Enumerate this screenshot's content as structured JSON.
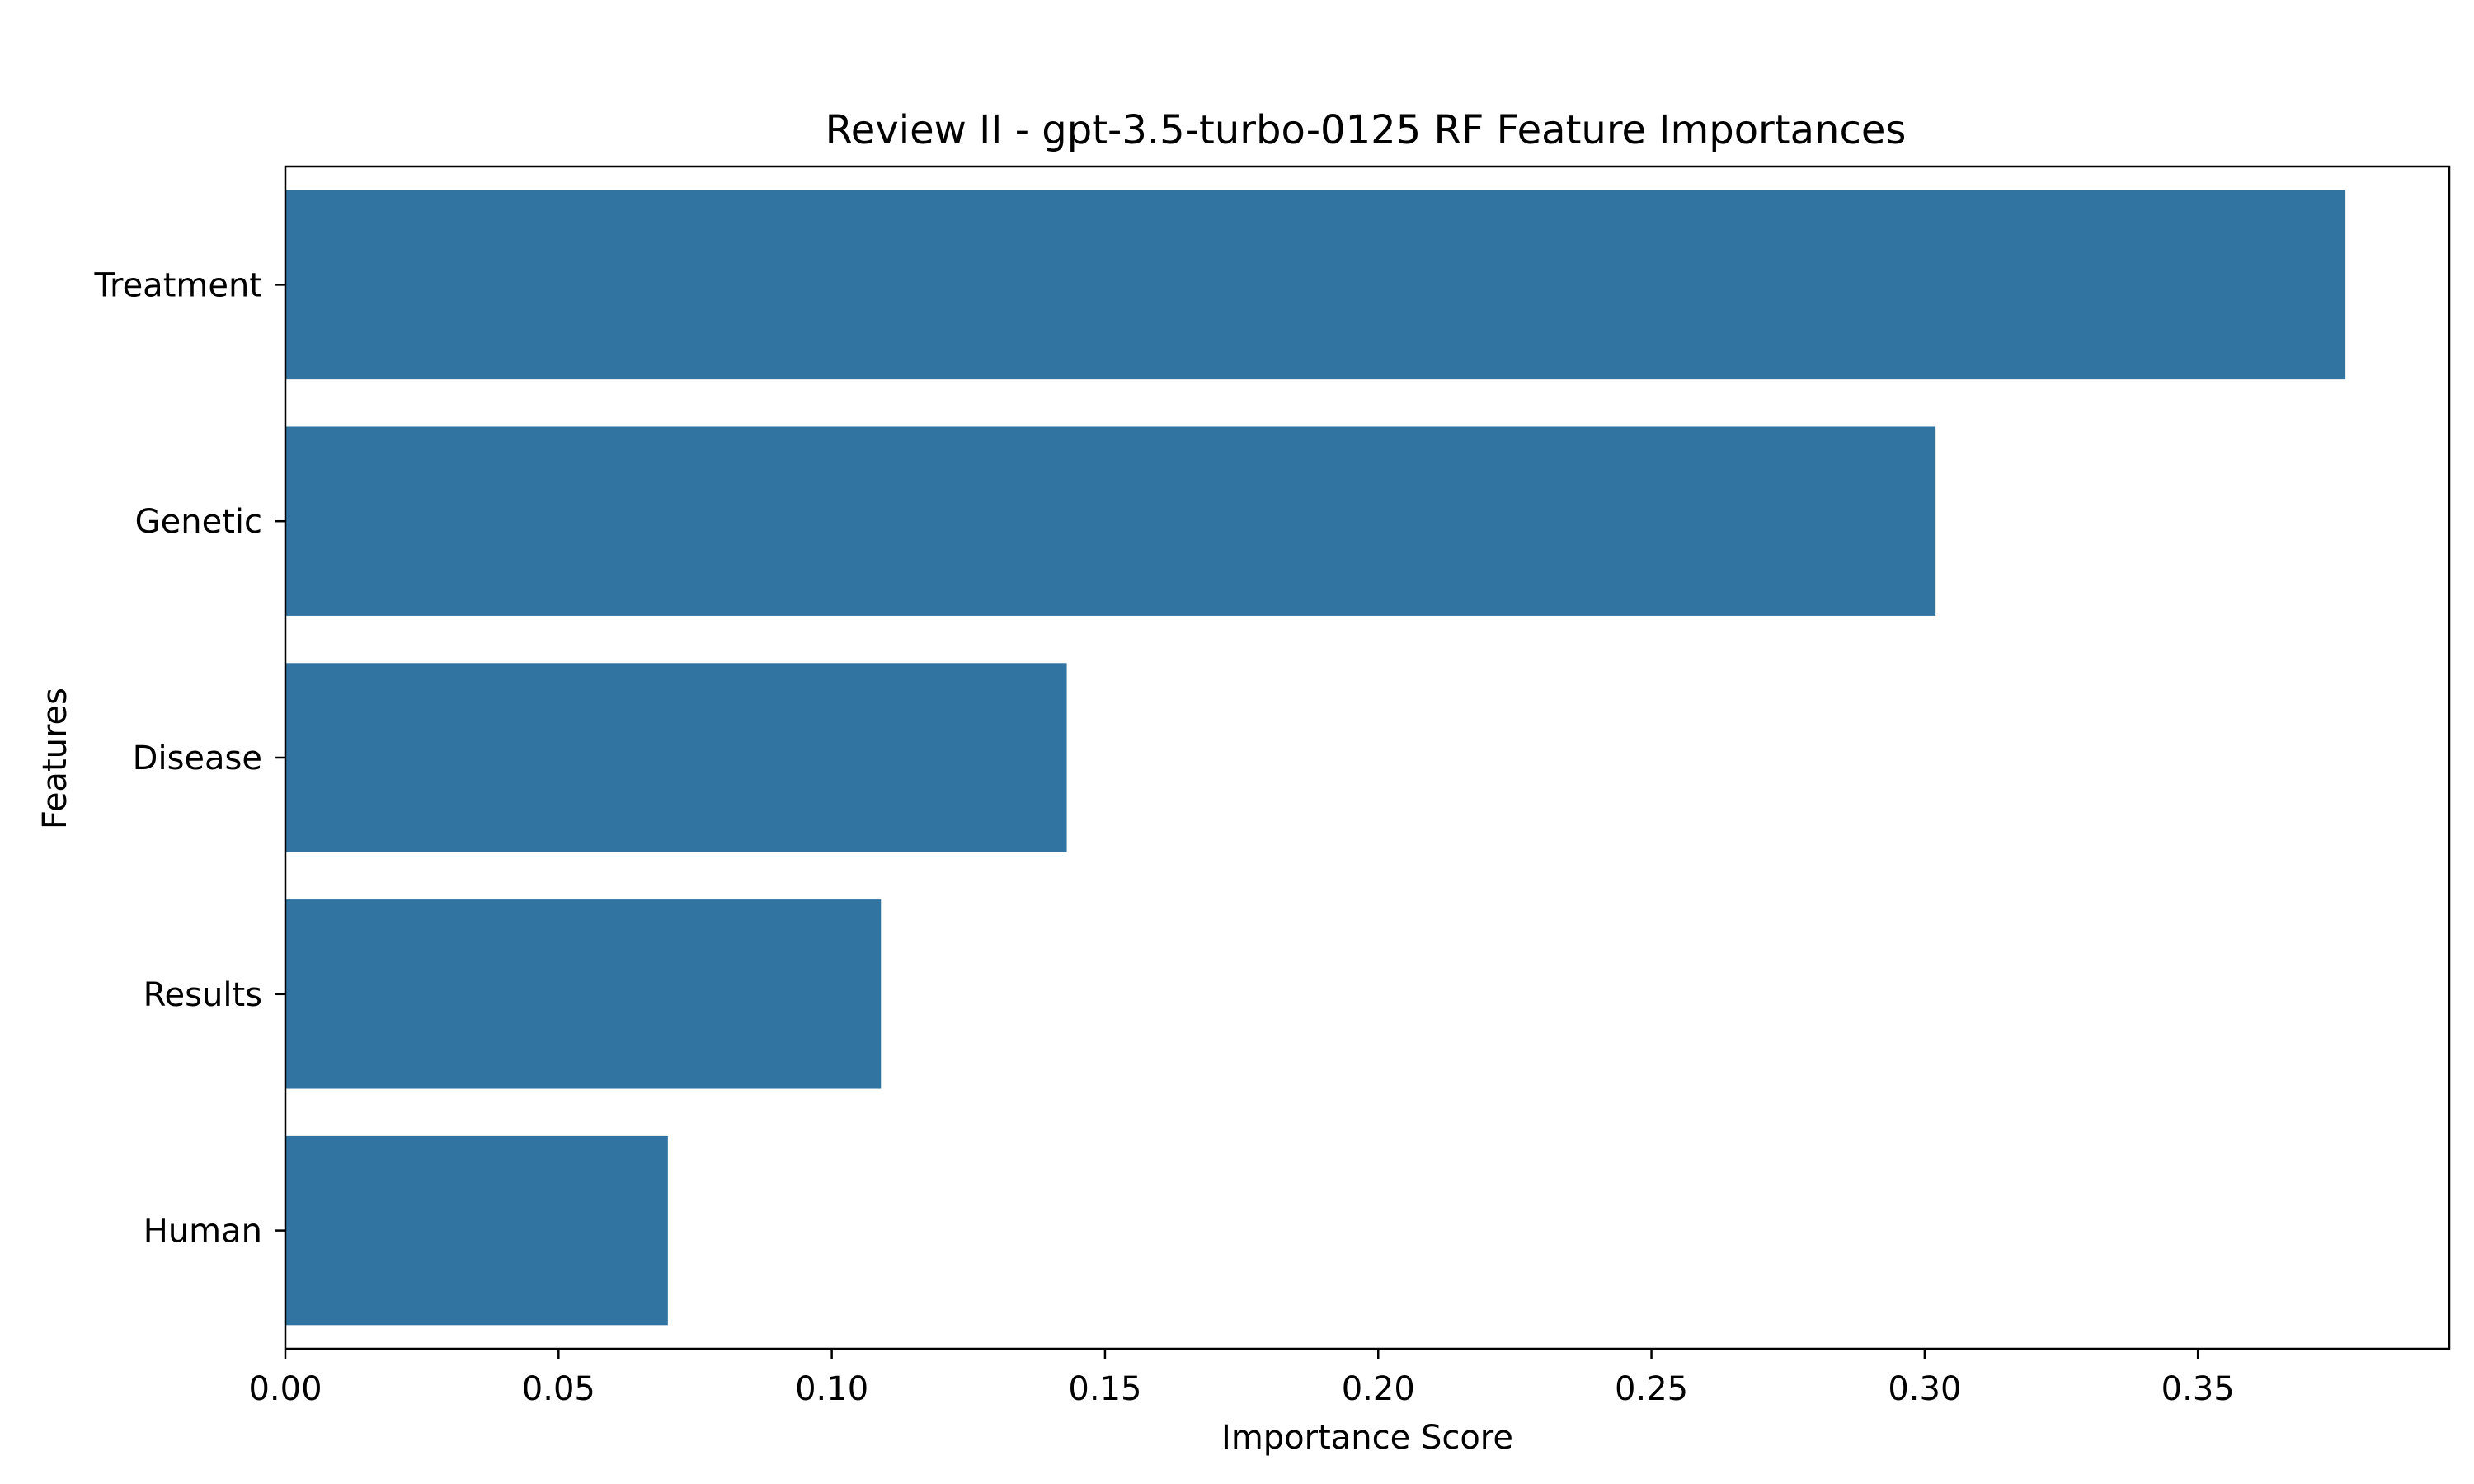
{
  "chart_data": {
    "type": "bar",
    "orientation": "horizontal",
    "title": "Review II - gpt-3.5-turbo-0125 RF Feature Importances",
    "xlabel": "Importance Score",
    "ylabel": "Features",
    "categories": [
      "Treatment",
      "Genetic",
      "Disease",
      "Results",
      "Human"
    ],
    "values": [
      0.377,
      0.302,
      0.143,
      0.109,
      0.07
    ],
    "xlim": [
      0,
      0.396
    ],
    "xticks": [
      0.0,
      0.05,
      0.1,
      0.15,
      0.2,
      0.25,
      0.3,
      0.35
    ],
    "xtick_labels": [
      "0.00",
      "0.05",
      "0.10",
      "0.15",
      "0.20",
      "0.25",
      "0.30",
      "0.35"
    ],
    "bar_color": "#3274a1",
    "grid": false,
    "legend": "none"
  }
}
